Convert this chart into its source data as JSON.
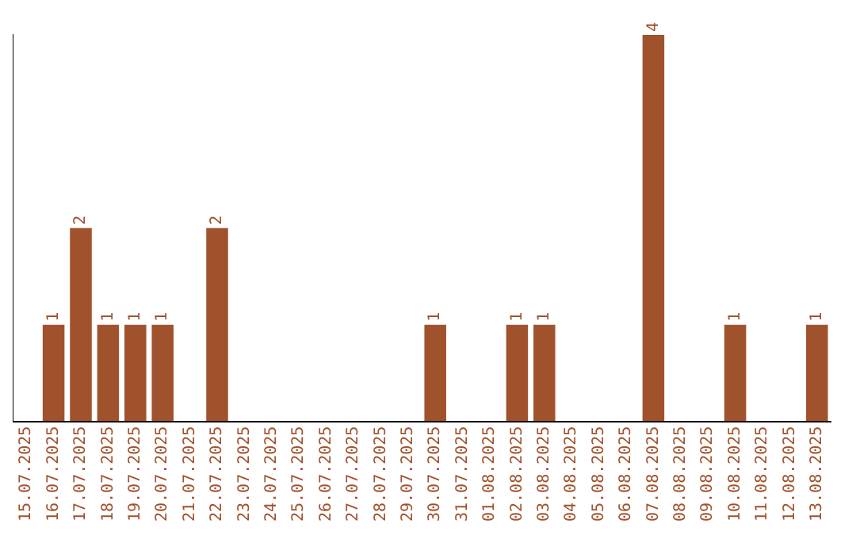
{
  "chart_data": {
    "type": "bar",
    "categories": [
      "15.07.2025",
      "16.07.2025",
      "17.07.2025",
      "18.07.2025",
      "19.07.2025",
      "20.07.2025",
      "21.07.2025",
      "22.07.2025",
      "23.07.2025",
      "24.07.2025",
      "25.07.2025",
      "26.07.2025",
      "27.07.2025",
      "28.07.2025",
      "29.07.2025",
      "30.07.2025",
      "31.07.2025",
      "01.08.2025",
      "02.08.2025",
      "03.08.2025",
      "04.08.2025",
      "05.08.2025",
      "06.08.2025",
      "07.08.2025",
      "08.08.2025",
      "09.08.2025",
      "10.08.2025",
      "11.08.2025",
      "12.08.2025",
      "13.08.2025"
    ],
    "values": [
      0,
      1,
      2,
      1,
      1,
      1,
      0,
      2,
      0,
      0,
      0,
      0,
      0,
      0,
      0,
      1,
      0,
      0,
      1,
      1,
      0,
      0,
      0,
      4,
      0,
      0,
      1,
      0,
      0,
      1
    ],
    "value_labels": [
      null,
      "1",
      "2",
      "1",
      "1",
      "1",
      null,
      "2",
      null,
      null,
      null,
      null,
      null,
      null,
      null,
      "1",
      null,
      null,
      "1",
      "1",
      null,
      null,
      null,
      "4",
      null,
      null,
      "1",
      null,
      null,
      "1"
    ],
    "color": "#a0522d",
    "grid": false,
    "legend": false,
    "tick_labels": "x"
  }
}
